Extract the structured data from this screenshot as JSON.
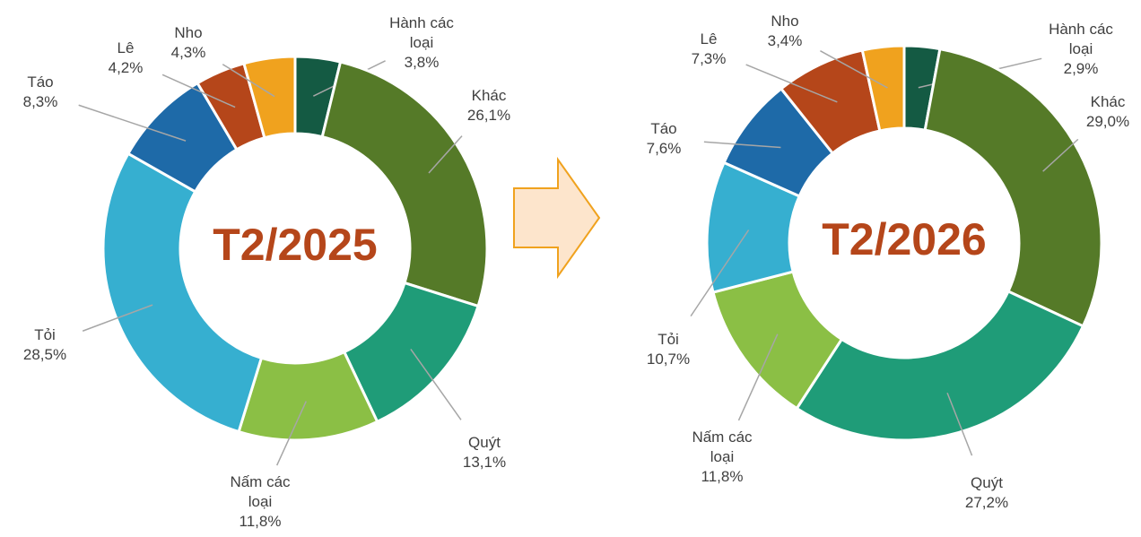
{
  "chart_data": [
    {
      "type": "donut",
      "title": "T2/2025",
      "categories": [
        "Hành các loại",
        "Khác",
        "Quýt",
        "Nấm các loại",
        "Tỏi",
        "Táo",
        "Lê",
        "Nho"
      ],
      "values": [
        3.8,
        26.1,
        13.1,
        11.8,
        28.5,
        8.3,
        4.2,
        4.3
      ],
      "value_labels": [
        "3,8%",
        "26,1%",
        "13,1%",
        "11,8%",
        "28,5%",
        "8,3%",
        "4,2%",
        "4,3%"
      ],
      "colors": [
        "#145a43",
        "#557a28",
        "#1f9c78",
        "#8bbf45",
        "#36afd0",
        "#1e6aa8",
        "#b5461a",
        "#f0a21e"
      ]
    },
    {
      "type": "donut",
      "title": "T2/2026",
      "categories": [
        "Hành các loại",
        "Khác",
        "Quýt",
        "Nấm các loại",
        "Tỏi",
        "Táo",
        "Lê",
        "Nho"
      ],
      "values": [
        2.9,
        29.0,
        27.2,
        11.8,
        10.7,
        7.6,
        7.3,
        3.4
      ],
      "value_labels": [
        "2,9%",
        "29,0%",
        "27,2%",
        "11,8%",
        "10,7%",
        "7,6%",
        "7,3%",
        "3,4%"
      ],
      "colors": [
        "#145a43",
        "#557a28",
        "#1f9c78",
        "#8bbf45",
        "#36afd0",
        "#1e6aa8",
        "#b5461a",
        "#f0a21e"
      ]
    }
  ]
}
